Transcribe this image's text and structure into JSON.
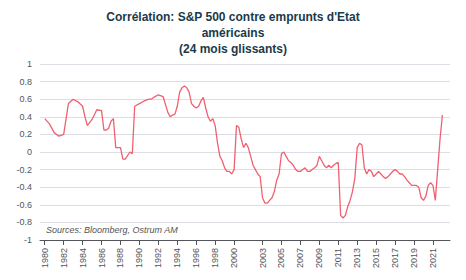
{
  "chart_data": {
    "type": "line",
    "title": "Corrélation: S&P 500 contre emprunts d'Etat\naméricains\n(24 mois glissants)",
    "annotations": [
      "Sources: Bloomberg, Ostrum AM"
    ],
    "color": "#f06070",
    "grid": true,
    "xlim": [
      1979.5,
      2022.8
    ],
    "xticks": [
      1980,
      1982,
      1984,
      1986,
      1988,
      1990,
      1992,
      1994,
      1996,
      1998,
      2000,
      2003,
      2005,
      2007,
      2009,
      2011,
      2013,
      2015,
      2017,
      2019,
      2021
    ],
    "ylim": [
      -1,
      1
    ],
    "yticks": [
      -1,
      -0.8,
      -0.6,
      -0.4,
      -0.2,
      0,
      0.2,
      0.4,
      0.6,
      0.8,
      1
    ],
    "x": [
      1980,
      1980.5,
      1981,
      1981.5,
      1982,
      1982.5,
      1983,
      1983.5,
      1984,
      1984.25,
      1984.5,
      1985,
      1985.5,
      1986,
      1986.25,
      1986.5,
      1986.75,
      1987,
      1987.25,
      1987.5,
      1988,
      1988.25,
      1988.5,
      1989,
      1989.25,
      1989.5,
      1990,
      1990.5,
      1991,
      1991.25,
      1991.5,
      1992,
      1992.5,
      1993,
      1993.25,
      1993.5,
      1993.75,
      1994,
      1994.25,
      1994.5,
      1994.75,
      1995,
      1995.25,
      1995.5,
      1995.75,
      1996,
      1996.25,
      1996.5,
      1996.75,
      1997,
      1997.25,
      1997.5,
      1997.75,
      1998,
      1998.25,
      1998.5,
      1998.75,
      1999,
      1999.25,
      1999.5,
      1999.75,
      2000,
      2000.25,
      2000.5,
      2000.75,
      2001,
      2001.25,
      2001.5,
      2001.75,
      2002,
      2002.25,
      2002.5,
      2002.75,
      2003,
      2003.25,
      2003.5,
      2003.75,
      2004,
      2004.25,
      2004.5,
      2004.75,
      2005,
      2005.25,
      2005.5,
      2005.75,
      2006,
      2006.25,
      2006.5,
      2006.75,
      2007,
      2007.25,
      2007.5,
      2007.75,
      2008,
      2008.25,
      2008.5,
      2008.75,
      2009,
      2009.25,
      2009.5,
      2009.75,
      2010,
      2010.25,
      2010.5,
      2010.75,
      2011,
      2011.25,
      2011.5,
      2011.75,
      2012,
      2012.25,
      2012.5,
      2012.75,
      2013,
      2013.25,
      2013.5,
      2013.75,
      2014,
      2014.25,
      2014.5,
      2014.75,
      2015,
      2015.25,
      2015.5,
      2015.75,
      2016,
      2016.25,
      2016.5,
      2016.75,
      2017,
      2017.25,
      2017.5,
      2017.75,
      2018,
      2018.25,
      2018.5,
      2018.75,
      2019,
      2019.25,
      2019.5,
      2019.75,
      2020,
      2020.25,
      2020.5,
      2020.75,
      2021,
      2021.25,
      2021.5,
      2021.75,
      2022
    ],
    "values": [
      0.38,
      0.32,
      0.22,
      0.18,
      0.2,
      0.55,
      0.6,
      0.57,
      0.52,
      0.4,
      0.3,
      0.37,
      0.48,
      0.47,
      0.25,
      0.25,
      0.27,
      0.35,
      0.38,
      0.05,
      0.05,
      -0.08,
      -0.08,
      0.0,
      -0.02,
      0.52,
      0.55,
      0.58,
      0.6,
      0.6,
      0.62,
      0.65,
      0.63,
      0.45,
      0.4,
      0.42,
      0.43,
      0.52,
      0.68,
      0.73,
      0.75,
      0.73,
      0.68,
      0.55,
      0.52,
      0.5,
      0.52,
      0.58,
      0.62,
      0.5,
      0.4,
      0.35,
      0.38,
      0.3,
      0.1,
      -0.05,
      -0.1,
      -0.18,
      -0.22,
      -0.22,
      -0.25,
      -0.2,
      0.3,
      0.28,
      0.15,
      0.05,
      0.1,
      0.05,
      -0.05,
      -0.15,
      -0.2,
      -0.25,
      -0.28,
      -0.52,
      -0.58,
      -0.58,
      -0.55,
      -0.52,
      -0.45,
      -0.32,
      -0.25,
      -0.02,
      0.0,
      -0.05,
      -0.1,
      -0.12,
      -0.15,
      -0.2,
      -0.22,
      -0.22,
      -0.2,
      -0.18,
      -0.22,
      -0.22,
      -0.2,
      -0.18,
      -0.15,
      -0.05,
      -0.1,
      -0.15,
      -0.18,
      -0.15,
      -0.18,
      -0.15,
      -0.13,
      -0.12,
      -0.72,
      -0.75,
      -0.72,
      -0.62,
      -0.55,
      -0.45,
      -0.3,
      0.05,
      0.1,
      0.08,
      -0.18,
      -0.25,
      -0.2,
      -0.22,
      -0.28,
      -0.25,
      -0.22,
      -0.25,
      -0.28,
      -0.3,
      -0.28,
      -0.25,
      -0.22,
      -0.2,
      -0.22,
      -0.25,
      -0.25,
      -0.28,
      -0.32,
      -0.35,
      -0.38,
      -0.38,
      -0.38,
      -0.4,
      -0.52,
      -0.55,
      -0.5,
      -0.38,
      -0.35,
      -0.38,
      -0.55,
      -0.2,
      0.15,
      0.42
    ]
  }
}
